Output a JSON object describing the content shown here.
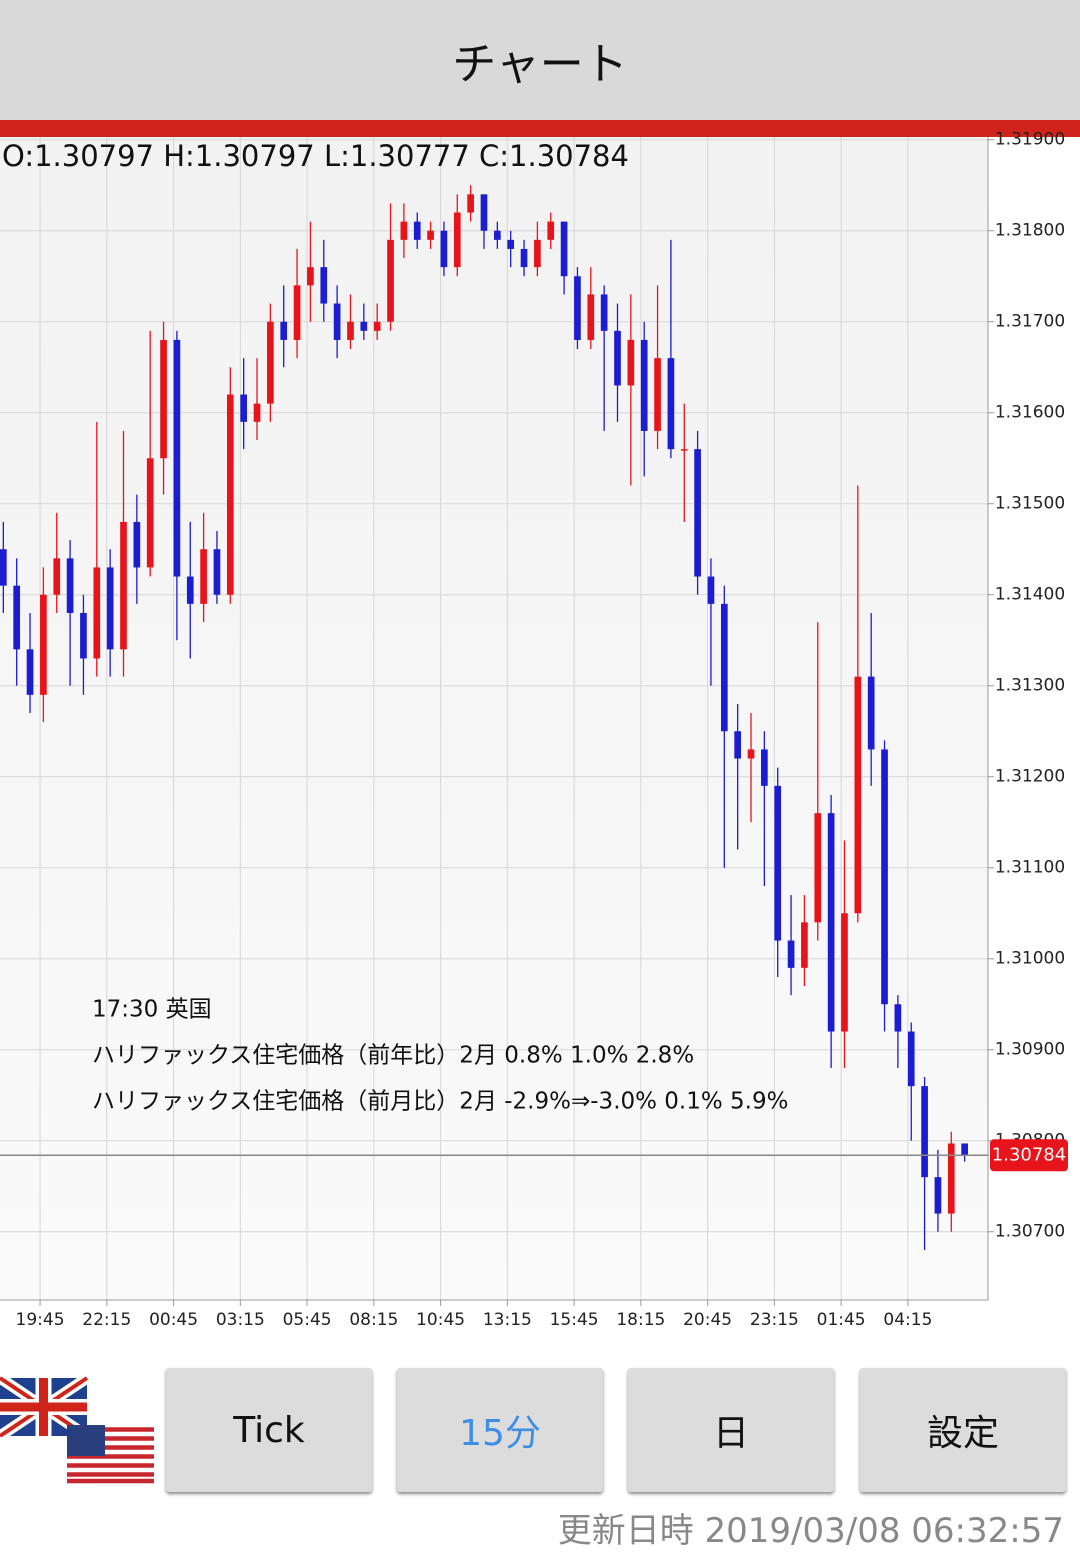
{
  "header": {
    "title": "チャート"
  },
  "ohlc_header": "O:1.30797 H:1.30797 L:1.30777 C:1.30784",
  "chart_data": {
    "type": "candlestick",
    "up_color": "#e8141c",
    "down_color": "#1c1cd0",
    "grid": true,
    "xlim": [
      0,
      148
    ],
    "ylim": [
      1.30625,
      1.31903
    ],
    "xticks": [
      {
        "value": 6,
        "label": "19:45"
      },
      {
        "value": 16,
        "label": "22:15"
      },
      {
        "value": 26,
        "label": "00:45"
      },
      {
        "value": 36,
        "label": "03:15"
      },
      {
        "value": 46,
        "label": "05:45"
      },
      {
        "value": 56,
        "label": "08:15"
      },
      {
        "value": 66,
        "label": "10:45"
      },
      {
        "value": 76,
        "label": "13:15"
      },
      {
        "value": 86,
        "label": "15:45"
      },
      {
        "value": 96,
        "label": "18:15"
      },
      {
        "value": 106,
        "label": "20:45"
      },
      {
        "value": 116,
        "label": "23:15"
      },
      {
        "value": 126,
        "label": "01:45"
      },
      {
        "value": 136,
        "label": "04:15"
      }
    ],
    "yticks": [
      {
        "value": 1.319,
        "label": "1.31900"
      },
      {
        "value": 1.318,
        "label": "1.31800"
      },
      {
        "value": 1.317,
        "label": "1.31700"
      },
      {
        "value": 1.316,
        "label": "1.31600"
      },
      {
        "value": 1.315,
        "label": "1.31500"
      },
      {
        "value": 1.314,
        "label": "1.31400"
      },
      {
        "value": 1.313,
        "label": "1.31300"
      },
      {
        "value": 1.312,
        "label": "1.31200"
      },
      {
        "value": 1.311,
        "label": "1.31100"
      },
      {
        "value": 1.31,
        "label": "1.31000"
      },
      {
        "value": 1.309,
        "label": "1.30900"
      },
      {
        "value": 1.308,
        "label": "1.30800"
      },
      {
        "value": 1.307,
        "label": "1.30700"
      }
    ],
    "current_price": 1.30784,
    "x": [
      0.5,
      2.5,
      4.5,
      6.5,
      8.5,
      10.5,
      12.5,
      14.5,
      16.5,
      18.5,
      20.5,
      22.5,
      24.5,
      26.5,
      28.5,
      30.5,
      32.5,
      34.5,
      36.5,
      38.5,
      40.5,
      42.5,
      44.5,
      46.5,
      48.5,
      50.5,
      52.5,
      54.5,
      56.5,
      58.5,
      60.5,
      62.5,
      64.5,
      66.5,
      68.5,
      70.5,
      72.5,
      74.5,
      76.5,
      78.5,
      80.5,
      82.5,
      84.5,
      86.5,
      88.5,
      90.5,
      92.5,
      94.5,
      96.5,
      98.5,
      100.5,
      102.5,
      104.5,
      106.5,
      108.5,
      110.5,
      112.5,
      114.5,
      116.5,
      118.5,
      120.5,
      122.5,
      124.5,
      126.5,
      128.5,
      130.5,
      132.5,
      134.5,
      136.5,
      138.5,
      140.5,
      142.5,
      144.5
    ],
    "open": [
      1.3145,
      1.3141,
      1.3134,
      1.3129,
      1.314,
      1.3144,
      1.3138,
      1.3133,
      1.3143,
      1.3134,
      1.3148,
      1.3143,
      1.3155,
      1.3168,
      1.3142,
      1.3139,
      1.3145,
      1.314,
      1.3162,
      1.3159,
      1.3161,
      1.317,
      1.3168,
      1.3174,
      1.3176,
      1.3172,
      1.3168,
      1.317,
      1.3169,
      1.317,
      1.3179,
      1.3181,
      1.3179,
      1.318,
      1.3176,
      1.3182,
      1.3184,
      1.318,
      1.3179,
      1.3178,
      1.3176,
      1.3179,
      1.3181,
      1.3175,
      1.3168,
      1.3173,
      1.3169,
      1.3163,
      1.3168,
      1.3158,
      1.3166,
      1.3156,
      1.3156,
      1.3142,
      1.3139,
      1.3125,
      1.3122,
      1.3123,
      1.3119,
      1.3102,
      1.3099,
      1.3104,
      1.3116,
      1.3092,
      1.3105,
      1.3131,
      1.3123,
      1.3095,
      1.3092,
      1.3086,
      1.3076,
      1.3072,
      1.30797
    ],
    "high": [
      1.3148,
      1.3144,
      1.3138,
      1.3143,
      1.3149,
      1.3146,
      1.314,
      1.3159,
      1.3145,
      1.3158,
      1.3151,
      1.3169,
      1.317,
      1.3169,
      1.3148,
      1.3149,
      1.3147,
      1.3165,
      1.3166,
      1.3166,
      1.3172,
      1.3174,
      1.3178,
      1.3181,
      1.3179,
      1.3174,
      1.3173,
      1.3172,
      1.3172,
      1.3183,
      1.3183,
      1.3182,
      1.3181,
      1.3181,
      1.3184,
      1.3185,
      1.3184,
      1.3181,
      1.318,
      1.3179,
      1.3181,
      1.3182,
      1.3181,
      1.3176,
      1.3176,
      1.3174,
      1.3172,
      1.3173,
      1.317,
      1.3174,
      1.3179,
      1.3161,
      1.3158,
      1.3144,
      1.3141,
      1.3128,
      1.3127,
      1.3125,
      1.3121,
      1.3107,
      1.3107,
      1.3137,
      1.3118,
      1.3113,
      1.3152,
      1.3138,
      1.3124,
      1.3096,
      1.3093,
      1.3087,
      1.3079,
      1.3081,
      1.30797
    ],
    "low": [
      1.3138,
      1.313,
      1.3127,
      1.3126,
      1.3138,
      1.313,
      1.3129,
      1.3131,
      1.3131,
      1.3131,
      1.3139,
      1.3142,
      1.3151,
      1.3135,
      1.3133,
      1.3137,
      1.3139,
      1.3139,
      1.3156,
      1.3157,
      1.3159,
      1.3165,
      1.3166,
      1.317,
      1.317,
      1.3166,
      1.3167,
      1.3168,
      1.3168,
      1.3169,
      1.3177,
      1.3178,
      1.3178,
      1.3175,
      1.3175,
      1.3181,
      1.3178,
      1.3178,
      1.3176,
      1.3175,
      1.3175,
      1.3178,
      1.3173,
      1.3167,
      1.3167,
      1.3158,
      1.3159,
      1.3152,
      1.3153,
      1.3156,
      1.3155,
      1.3148,
      1.314,
      1.313,
      1.311,
      1.3112,
      1.3115,
      1.3108,
      1.3098,
      1.3096,
      1.3097,
      1.3102,
      1.3088,
      1.3088,
      1.3104,
      1.3119,
      1.3092,
      1.3088,
      1.308,
      1.3068,
      1.307,
      1.307,
      1.30777
    ],
    "close": [
      1.3141,
      1.3134,
      1.3129,
      1.314,
      1.3144,
      1.3138,
      1.3133,
      1.3143,
      1.3134,
      1.3148,
      1.3143,
      1.3155,
      1.3168,
      1.3142,
      1.3139,
      1.3145,
      1.314,
      1.3162,
      1.3159,
      1.3161,
      1.317,
      1.3168,
      1.3174,
      1.3176,
      1.3172,
      1.3168,
      1.317,
      1.3169,
      1.317,
      1.3179,
      1.3181,
      1.3179,
      1.318,
      1.3176,
      1.3182,
      1.3184,
      1.318,
      1.3179,
      1.3178,
      1.3176,
      1.3179,
      1.3181,
      1.3175,
      1.3168,
      1.3173,
      1.3169,
      1.3163,
      1.3168,
      1.3158,
      1.3166,
      1.3156,
      1.3156,
      1.3142,
      1.3139,
      1.3125,
      1.3122,
      1.3123,
      1.3119,
      1.3102,
      1.3099,
      1.3104,
      1.3116,
      1.3092,
      1.3105,
      1.3131,
      1.3123,
      1.3095,
      1.3092,
      1.3086,
      1.3076,
      1.3072,
      1.30797,
      1.30784
    ]
  },
  "annotation": {
    "lines": [
      "17:30 英国",
      "ハリファックス住宅価格（前年比）2月 0.8% 1.0% 2.8%",
      "ハリファックス住宅価格（前月比）2月 -2.9%⇒-3.0% 0.1% 5.9%"
    ]
  },
  "buttons": [
    "Tick",
    "15分",
    "日",
    "設定"
  ],
  "footer": "更新日時 2019/03/08 06:32:57"
}
